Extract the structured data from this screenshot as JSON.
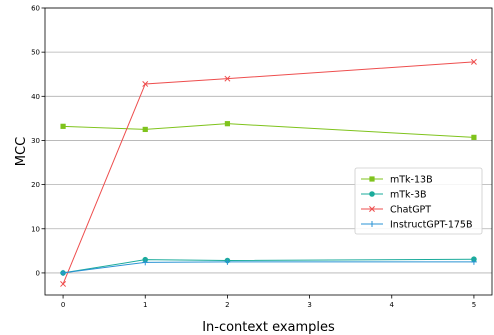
{
  "chart_data": {
    "type": "line",
    "xlabel": "In-context examples",
    "ylabel": "MCC",
    "xlim": [
      -0.22,
      5.22
    ],
    "ylim": [
      -5,
      60
    ],
    "xticks": [
      0,
      1,
      2,
      3,
      4,
      5
    ],
    "yticks": [
      0,
      10,
      20,
      30,
      40,
      50,
      60
    ],
    "grid": "horizontal",
    "legend_position": "center-right",
    "series": [
      {
        "name": "mTk-13B",
        "color": "#7fc31c",
        "marker": "square",
        "x": [
          0,
          1,
          2,
          5
        ],
        "y": [
          33.2,
          32.5,
          33.8,
          30.7
        ]
      },
      {
        "name": "mTk-3B",
        "color": "#1aab9b",
        "marker": "circle",
        "x": [
          0,
          1,
          2,
          5
        ],
        "y": [
          0.0,
          3.0,
          2.8,
          3.1
        ]
      },
      {
        "name": "ChatGPT",
        "color": "#ee4e4e",
        "marker": "x",
        "x": [
          0,
          1,
          2,
          5
        ],
        "y": [
          -2.5,
          42.8,
          44.0,
          47.8
        ]
      },
      {
        "name": "InstructGPT-175B",
        "color": "#2a93d4",
        "marker": "plus",
        "x": [
          0,
          1,
          2,
          5
        ],
        "y": [
          0.0,
          2.4,
          2.5,
          2.5
        ]
      }
    ]
  }
}
